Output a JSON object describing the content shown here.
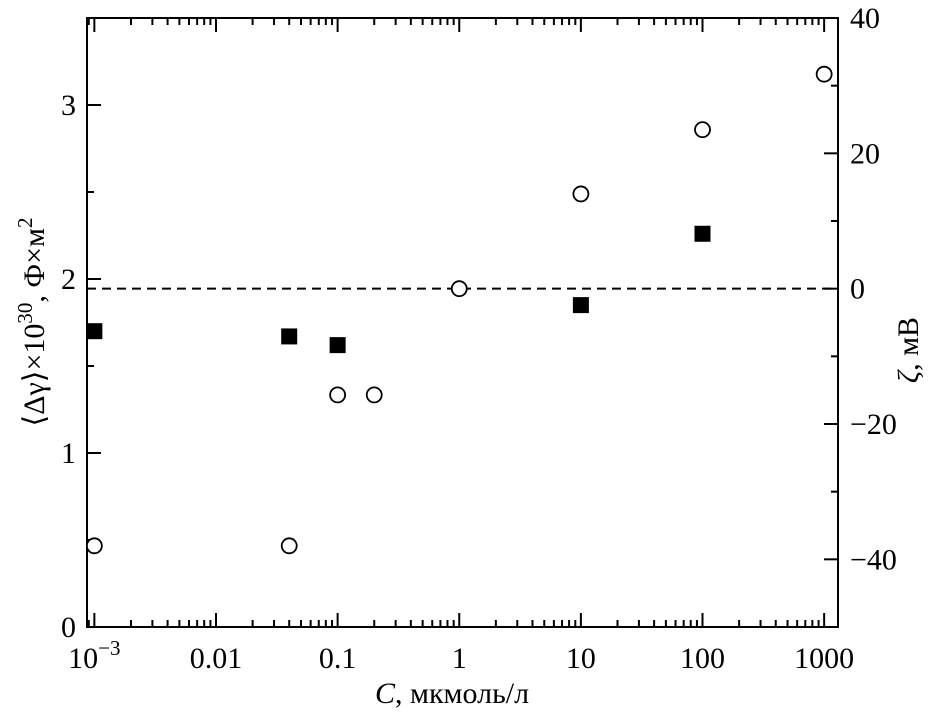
{
  "chart_data": {
    "type": "scatter",
    "x_scale": "log",
    "xlim": [
      0.00087,
      1300
    ],
    "x_ticks": [
      {
        "value": 0.001,
        "base": "10",
        "exp": "−3"
      },
      {
        "value": 0.01,
        "label": "0.01"
      },
      {
        "value": 0.1,
        "label": "0.1"
      },
      {
        "value": 1,
        "label": "1"
      },
      {
        "value": 10,
        "label": "10"
      },
      {
        "value": 100,
        "label": "100"
      },
      {
        "value": 1000,
        "label": "1000"
      }
    ],
    "xlabel": {
      "var": "C",
      "rest": ", мкмоль/л"
    },
    "left_axis": {
      "label": {
        "prefix": "⟨Δγ⟩×10",
        "exp1": "30",
        "mid": ", Ф×м",
        "exp2": "2"
      },
      "ylim": [
        0,
        3.5
      ],
      "ticks": [
        0,
        1,
        2,
        3
      ]
    },
    "right_axis": {
      "label": {
        "var": "ζ",
        "rest": ", мВ"
      },
      "ylim": [
        -50,
        40
      ],
      "ticks": [
        -40,
        -20,
        0,
        20,
        40
      ],
      "tick_labels": [
        "−40",
        "−20",
        "0",
        "20",
        "40"
      ]
    },
    "reference_line": {
      "axis": "right",
      "value": 0,
      "style": "dashed"
    },
    "series": [
      {
        "marker": "filled-square",
        "axis": "left",
        "x": [
          0.001,
          0.04,
          0.1,
          10,
          100
        ],
        "y": [
          1.7,
          1.67,
          1.62,
          1.85,
          2.26
        ]
      },
      {
        "marker": "open-circle",
        "axis": "right",
        "x": [
          0.001,
          0.04,
          0.1,
          0.2,
          1,
          10,
          100,
          1000
        ],
        "y": [
          -38,
          -38,
          -15.7,
          -15.7,
          0,
          14,
          23.5,
          31.7
        ]
      }
    ],
    "grid": false,
    "legend": "none"
  }
}
